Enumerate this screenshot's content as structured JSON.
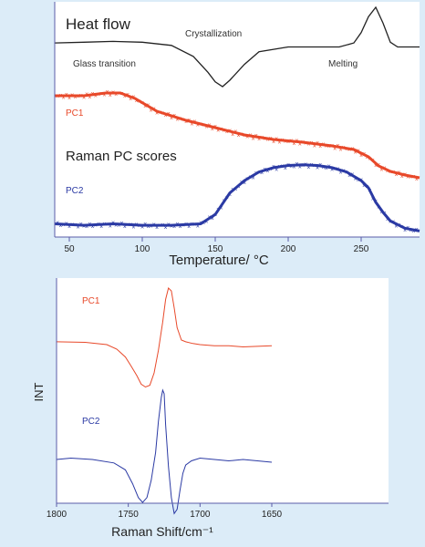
{
  "colors": {
    "background": "#dcecf8",
    "panel": "#ffffff",
    "axis": "#5a5ca8",
    "heat_flow": "#222222",
    "pc1": "#e8492a",
    "pc2": "#2b3aa4"
  },
  "chart_data": [
    {
      "type": "line",
      "title": "Heat flow",
      "annotations": [
        "Glass transition",
        "Crystallization",
        "Melting"
      ],
      "xlabel": "Temperature/ °C",
      "ylabel": "",
      "xlim": [
        40,
        290
      ],
      "xticks": [
        50,
        100,
        150,
        200,
        250
      ],
      "grid": false,
      "subtitle": "Raman PC scores",
      "series": [
        {
          "name": "",
          "x": [
            40,
            60,
            80,
            100,
            120,
            135,
            145,
            150,
            155,
            160,
            170,
            180,
            200,
            220,
            235,
            245,
            250,
            255,
            260,
            265,
            270,
            275,
            290
          ],
          "y": [
            0.55,
            0.56,
            0.57,
            0.56,
            0.52,
            0.38,
            0.18,
            0.06,
            0.0,
            0.08,
            0.28,
            0.44,
            0.5,
            0.5,
            0.5,
            0.55,
            0.68,
            0.88,
            1.0,
            0.8,
            0.56,
            0.5,
            0.5
          ]
        },
        {
          "name": "PC1",
          "x": [
            40,
            60,
            75,
            85,
            95,
            110,
            130,
            150,
            170,
            190,
            210,
            230,
            245,
            255,
            262,
            270,
            280,
            290
          ],
          "y": [
            0.95,
            0.95,
            0.98,
            0.98,
            0.92,
            0.78,
            0.68,
            0.6,
            0.52,
            0.47,
            0.44,
            0.4,
            0.36,
            0.28,
            0.18,
            0.12,
            0.08,
            0.05
          ]
        },
        {
          "name": "PC2",
          "x": [
            40,
            60,
            80,
            100,
            120,
            140,
            150,
            160,
            170,
            180,
            190,
            200,
            210,
            220,
            230,
            240,
            250,
            255,
            260,
            265,
            270,
            280,
            290
          ],
          "y": [
            0.12,
            0.1,
            0.12,
            0.1,
            0.1,
            0.12,
            0.25,
            0.55,
            0.72,
            0.84,
            0.9,
            0.93,
            0.94,
            0.93,
            0.9,
            0.84,
            0.72,
            0.62,
            0.42,
            0.28,
            0.16,
            0.06,
            0.02
          ]
        }
      ]
    },
    {
      "type": "line",
      "xlabel": "Raman Shift/cm⁻¹",
      "ylabel": "INT",
      "xlim": [
        1800,
        1650
      ],
      "xticks": [
        1800,
        1750,
        1700,
        1650
      ],
      "grid": false,
      "series": [
        {
          "name": "PC1",
          "x": [
            1800,
            1780,
            1765,
            1758,
            1752,
            1748,
            1744,
            1741,
            1738,
            1735,
            1732,
            1729,
            1726,
            1724,
            1722,
            1720,
            1718,
            1716,
            1713,
            1710,
            1705,
            1700,
            1690,
            1680,
            1670,
            1660,
            1650
          ],
          "y": [
            0.05,
            0.04,
            0.0,
            -0.08,
            -0.22,
            -0.38,
            -0.55,
            -0.7,
            -0.75,
            -0.72,
            -0.5,
            -0.1,
            0.4,
            0.8,
            1.0,
            0.95,
            0.65,
            0.3,
            0.08,
            0.05,
            0.02,
            0.0,
            -0.02,
            -0.02,
            -0.04,
            -0.03,
            -0.02
          ]
        },
        {
          "name": "PC2",
          "x": [
            1800,
            1790,
            1775,
            1760,
            1752,
            1747,
            1743,
            1740,
            1737,
            1734,
            1731,
            1729,
            1727,
            1726,
            1725,
            1724,
            1722,
            1720,
            1718,
            1716,
            1714,
            1712,
            1710,
            1706,
            1700,
            1690,
            1680,
            1670,
            1660,
            1650
          ],
          "y": [
            0.0,
            0.02,
            0.0,
            -0.05,
            -0.15,
            -0.35,
            -0.55,
            -0.62,
            -0.55,
            -0.3,
            0.1,
            0.55,
            0.9,
            1.0,
            0.95,
            0.5,
            -0.1,
            -0.55,
            -0.78,
            -0.72,
            -0.45,
            -0.2,
            -0.08,
            -0.02,
            0.02,
            0.0,
            -0.02,
            0.0,
            -0.02,
            -0.04
          ]
        }
      ]
    }
  ]
}
